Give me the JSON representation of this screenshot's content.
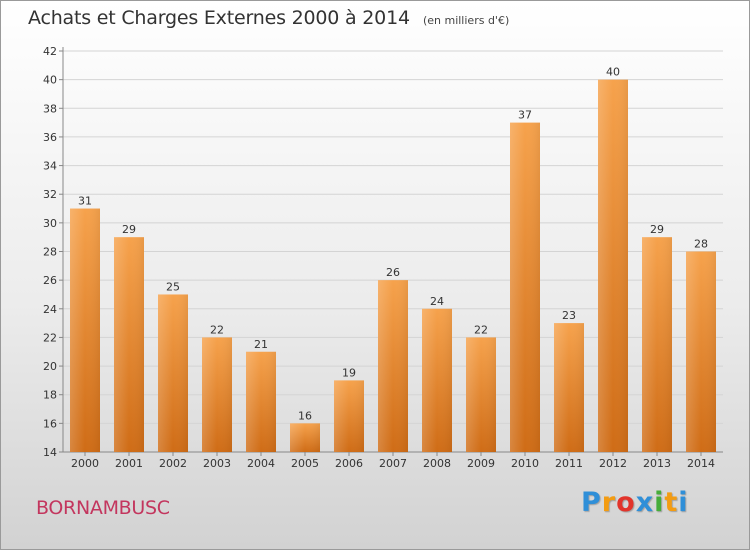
{
  "title": "Achats et Charges Externes 2000 à 2014",
  "subtitle": "(en milliers d'€)",
  "place_name": "BORNAMBUSC",
  "logo": {
    "text": "Proxiti",
    "letters": [
      "P",
      "r",
      "o",
      "x",
      "i",
      "t",
      "i"
    ],
    "colors": [
      "#2f8fd8",
      "#f39c12",
      "#e2342b",
      "#2f8fd8",
      "#46ad3a",
      "#f39c12",
      "#2f8fd8"
    ]
  },
  "colors": {
    "bar_top": "#f6a24c",
    "bar_bottom": "#cf6c16",
    "grid": "#d4d4d4",
    "axis": "#888888",
    "title": "#333333",
    "place_name": "#c3365e"
  },
  "chart_data": {
    "type": "bar",
    "title": "Achats et Charges Externes 2000 à 2014",
    "subtitle": "(en milliers d'€)",
    "categories": [
      "2000",
      "2001",
      "2002",
      "2003",
      "2004",
      "2005",
      "2006",
      "2007",
      "2008",
      "2009",
      "2010",
      "2011",
      "2012",
      "2013",
      "2014"
    ],
    "values": [
      31,
      29,
      25,
      22,
      21,
      16,
      19,
      26,
      24,
      22,
      37,
      23,
      40,
      29,
      28
    ],
    "ylim": [
      14,
      42
    ],
    "yticks": [
      14,
      16,
      18,
      20,
      22,
      24,
      26,
      28,
      30,
      32,
      34,
      36,
      38,
      40,
      42
    ],
    "xlabel": "",
    "ylabel": "",
    "grid": true,
    "data_labels": true
  }
}
